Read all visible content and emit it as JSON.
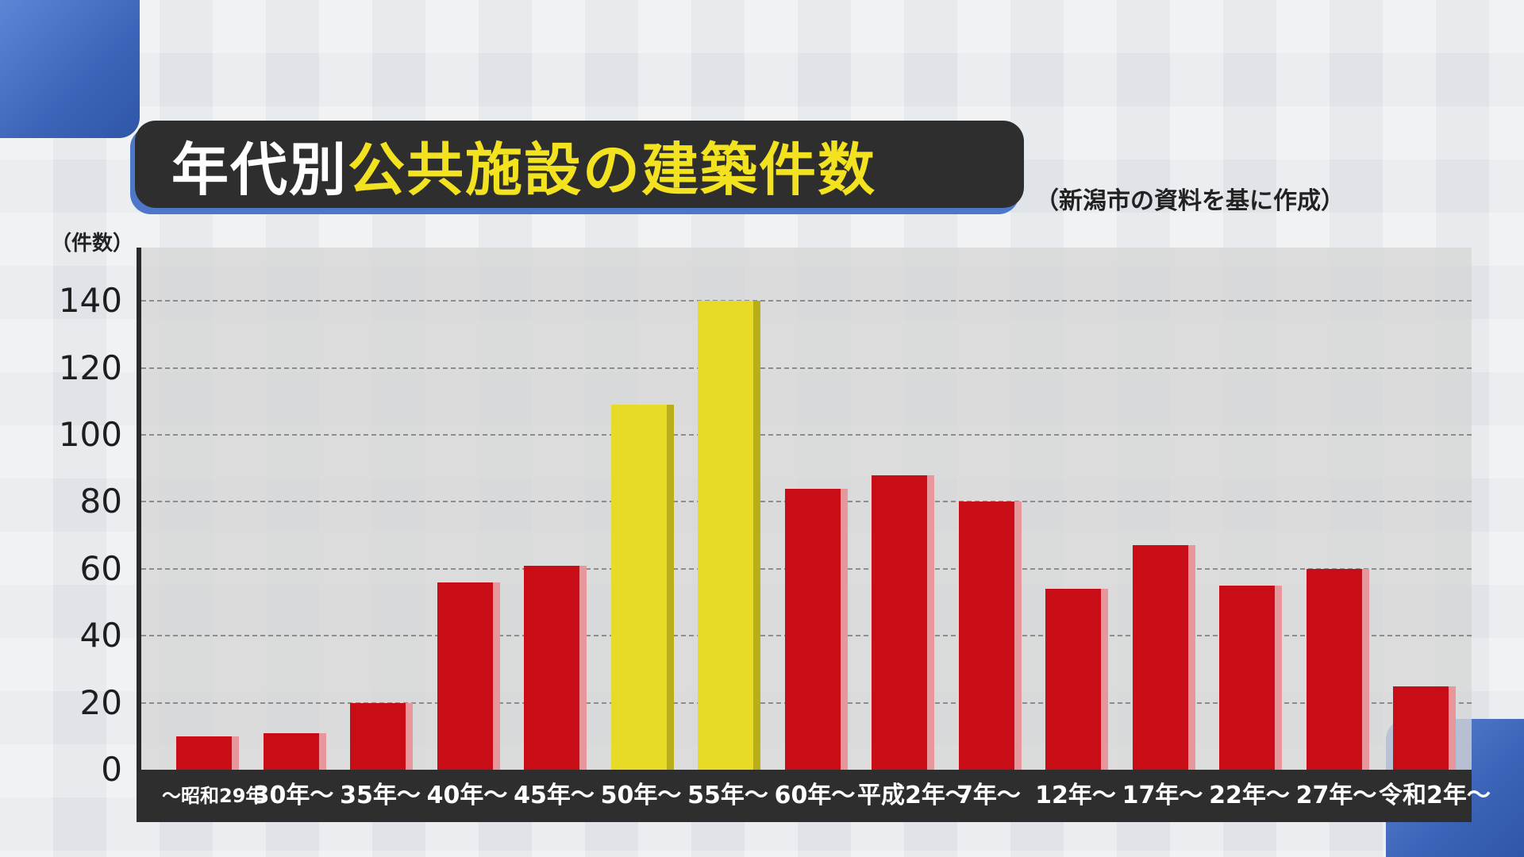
{
  "chart_data": {
    "type": "bar",
    "title": "年代別公共施設の建築件数",
    "title_parts": {
      "white": "年代別",
      "yellow": "公共施設の建築件数"
    },
    "source": "（新潟市の資料を基に作成）",
    "ylabel": "（件数）",
    "xlabel": "",
    "ylim": [
      0,
      155
    ],
    "yticks": [
      0,
      20,
      40,
      60,
      80,
      100,
      120,
      140
    ],
    "grid": true,
    "categories": [
      "～昭和29年",
      "30年～",
      "35年～",
      "40年～",
      "45年～",
      "50年～",
      "55年～",
      "60年～",
      "平成2年～",
      "7年～",
      "12年～",
      "17年～",
      "22年～",
      "27年～",
      "令和2年～"
    ],
    "values": [
      10,
      11,
      20,
      56,
      61,
      109,
      140,
      84,
      88,
      80,
      54,
      67,
      55,
      60,
      25
    ],
    "highlighted": [
      "50年～",
      "55年～"
    ],
    "colors": {
      "normal": "#c80d17",
      "highlight": "#e8db28"
    }
  }
}
